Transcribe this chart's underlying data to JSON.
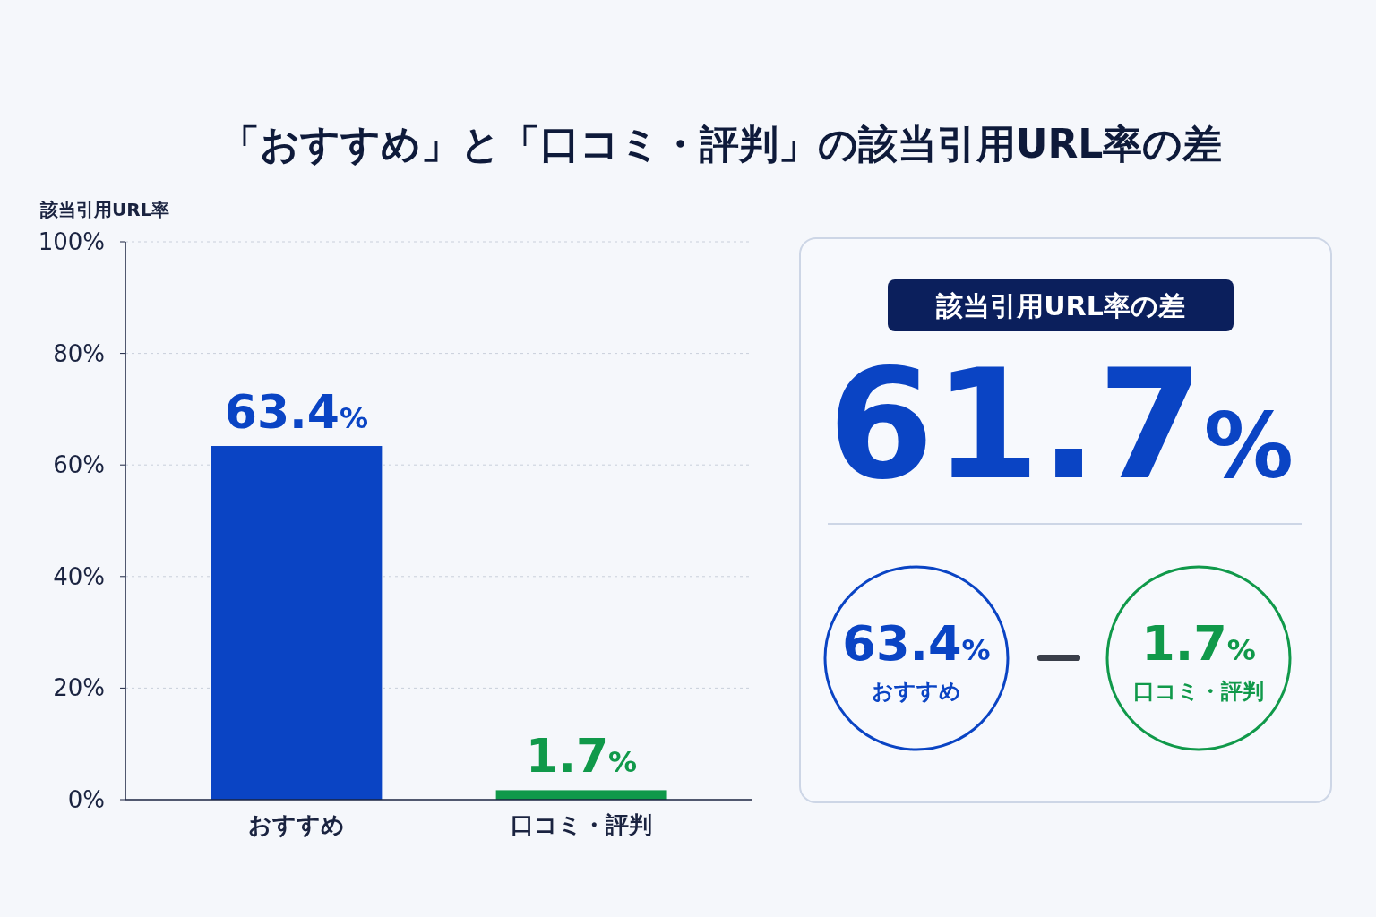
{
  "chart_data": [
    {
      "type": "bar",
      "title": "「おすすめ」と「口コミ・評判」の該当引用URL率の差",
      "ylabel": "該当引用URL率",
      "categories": [
        "おすすめ",
        "口コミ・評判"
      ],
      "values": [
        63.4,
        1.7
      ],
      "colors": [
        "#0a44c4",
        "#10994a"
      ],
      "value_labels": [
        "63.4%",
        "1.7%"
      ],
      "ylim": [
        0,
        100
      ],
      "yticks": [
        {
          "value": 0,
          "label": "0%"
        },
        {
          "value": 20,
          "label": "20%"
        },
        {
          "value": 40,
          "label": "40%"
        },
        {
          "value": 60,
          "label": "60%"
        },
        {
          "value": 80,
          "label": "80%"
        },
        {
          "value": 100,
          "label": "100%"
        }
      ],
      "grid": "y"
    },
    {
      "type": "other",
      "title": "該当引用URL率の差",
      "annotations": [
        "61.7%",
        "63.4%",
        "おすすめ",
        "1.7%",
        "口コミ・評判"
      ]
    }
  ]
}
